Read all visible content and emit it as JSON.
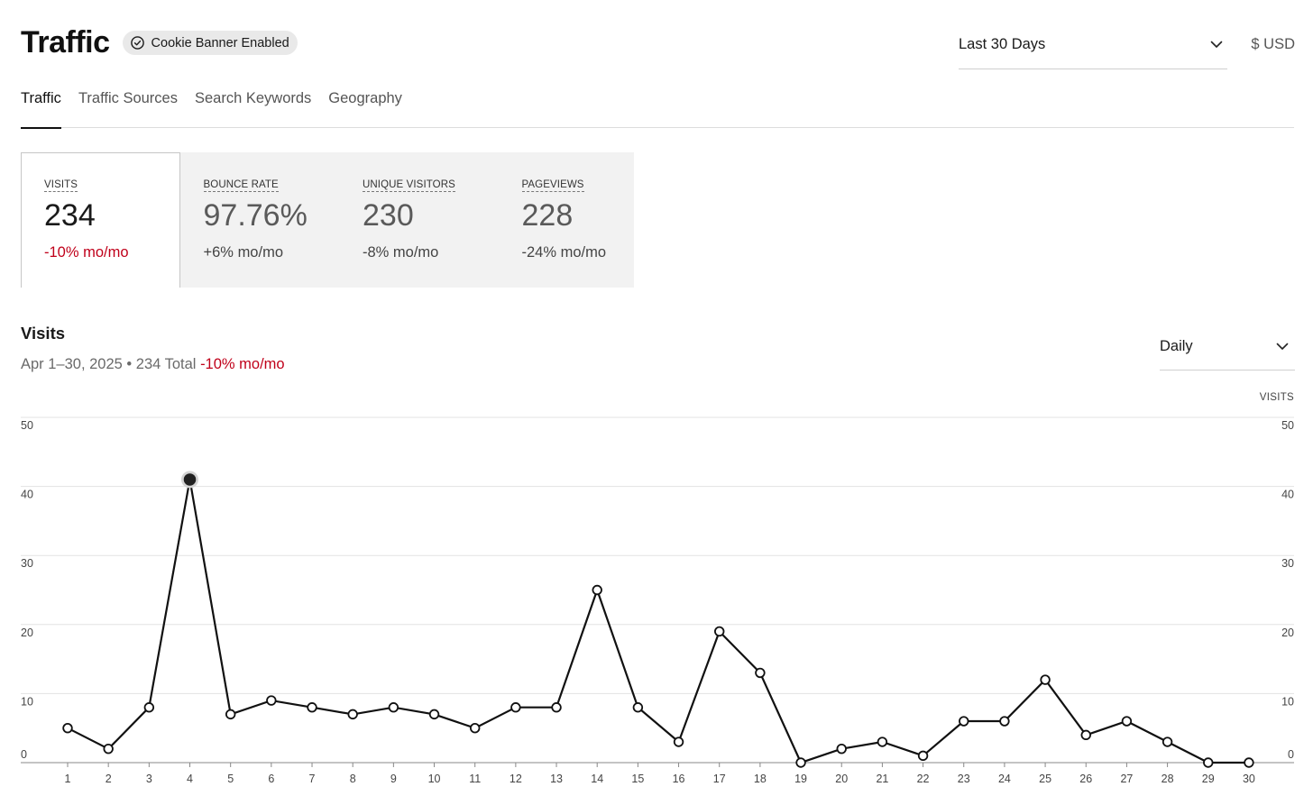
{
  "header": {
    "title": "Traffic",
    "badge": "Cookie Banner Enabled",
    "badge_icon": "check-circle-icon"
  },
  "range_select": {
    "value": "Last 30 Days",
    "icon": "chevron-down-icon"
  },
  "currency": "$ USD",
  "tabs": [
    {
      "label": "Traffic",
      "active": true
    },
    {
      "label": "Traffic Sources",
      "active": false
    },
    {
      "label": "Search Keywords",
      "active": false
    },
    {
      "label": "Geography",
      "active": false
    }
  ],
  "metrics": [
    {
      "label": "VISITS",
      "value": "234",
      "change": "-10% mo/mo",
      "negative": true,
      "active": true
    },
    {
      "label": "BOUNCE RATE",
      "value": "97.76%",
      "change": "+6% mo/mo",
      "negative": false,
      "active": false
    },
    {
      "label": "UNIQUE VISITORS",
      "value": "230",
      "change": "-8% mo/mo",
      "negative": false,
      "active": false
    },
    {
      "label": "PAGEVIEWS",
      "value": "228",
      "change": "-24% mo/mo",
      "negative": false,
      "active": false
    }
  ],
  "visits_section": {
    "title": "Visits",
    "subtitle": "Apr 1–30, 2025 • 234 Total",
    "change": "-10% mo/mo",
    "granularity": "Daily"
  },
  "colors": {
    "negative": "#c0001a",
    "line": "#111111",
    "grid": "#e3e3e3",
    "highlight": "#222222"
  },
  "chart_data": {
    "type": "line",
    "ylabel": "VISITS",
    "ylim": [
      0,
      50
    ],
    "yticks": [
      0,
      10,
      20,
      30,
      40,
      50
    ],
    "x": [
      1,
      2,
      3,
      4,
      5,
      6,
      7,
      8,
      9,
      10,
      11,
      12,
      13,
      14,
      15,
      16,
      17,
      18,
      19,
      20,
      21,
      22,
      23,
      24,
      25,
      26,
      27,
      28,
      29,
      30
    ],
    "series": [
      {
        "values": [
          5,
          2,
          8,
          41,
          7,
          9,
          8,
          7,
          8,
          7,
          5,
          8,
          8,
          25,
          8,
          3,
          19,
          13,
          0,
          2,
          3,
          1,
          6,
          6,
          12,
          4,
          6,
          3,
          0,
          0
        ]
      }
    ],
    "highlight_index": 3,
    "grid": true
  }
}
